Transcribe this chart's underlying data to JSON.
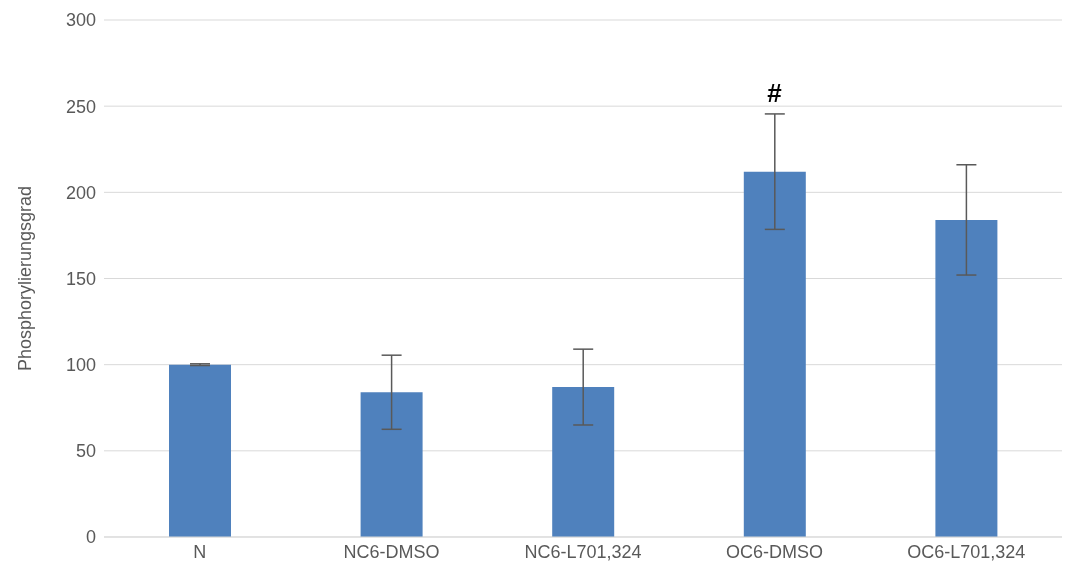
{
  "chart_data": {
    "type": "bar",
    "ylabel": "Phosphorylierungsgrad",
    "categories": [
      "N",
      "NC6-DMSO",
      "NC6-L701,324",
      "OC6-DMSO",
      "OC6-L701,324"
    ],
    "values": [
      100,
      84,
      87,
      212,
      184
    ],
    "errors": [
      0.5,
      21.5,
      22,
      33.5,
      32
    ],
    "color": "#4f81bd",
    "ylim": [
      0,
      300
    ],
    "yticks": [
      0,
      50,
      100,
      150,
      200,
      250,
      300
    ],
    "grid": "y",
    "annotations": [
      "#"
    ]
  }
}
